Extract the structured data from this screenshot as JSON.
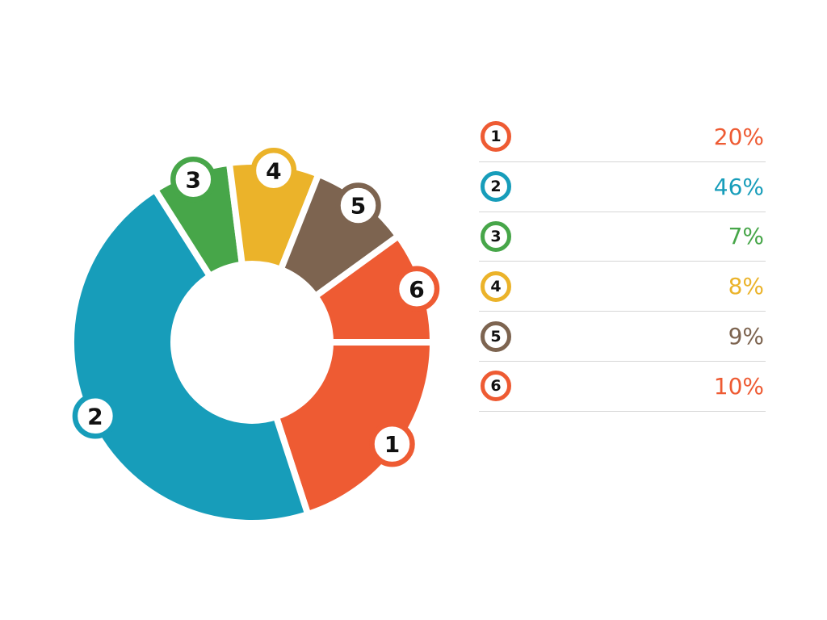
{
  "chart_data": {
    "type": "pie",
    "subtype": "donut",
    "title": "",
    "categories": [
      "1",
      "2",
      "3",
      "4",
      "5",
      "6"
    ],
    "values": [
      20,
      46,
      7,
      8,
      9,
      10
    ],
    "labels": [
      "20%",
      "46%",
      "7%",
      "8%",
      "9%",
      "10%"
    ],
    "colors": [
      "#EE5B33",
      "#179DBA",
      "#47A649",
      "#EBB32A",
      "#7D6450",
      "#EE5B33"
    ],
    "start_angle_deg": 0,
    "direction": "clockwise",
    "legend_position": "right",
    "badge_number_color": "#111111",
    "separator_color": "#d6d6d6",
    "background_color": "#ffffff"
  }
}
